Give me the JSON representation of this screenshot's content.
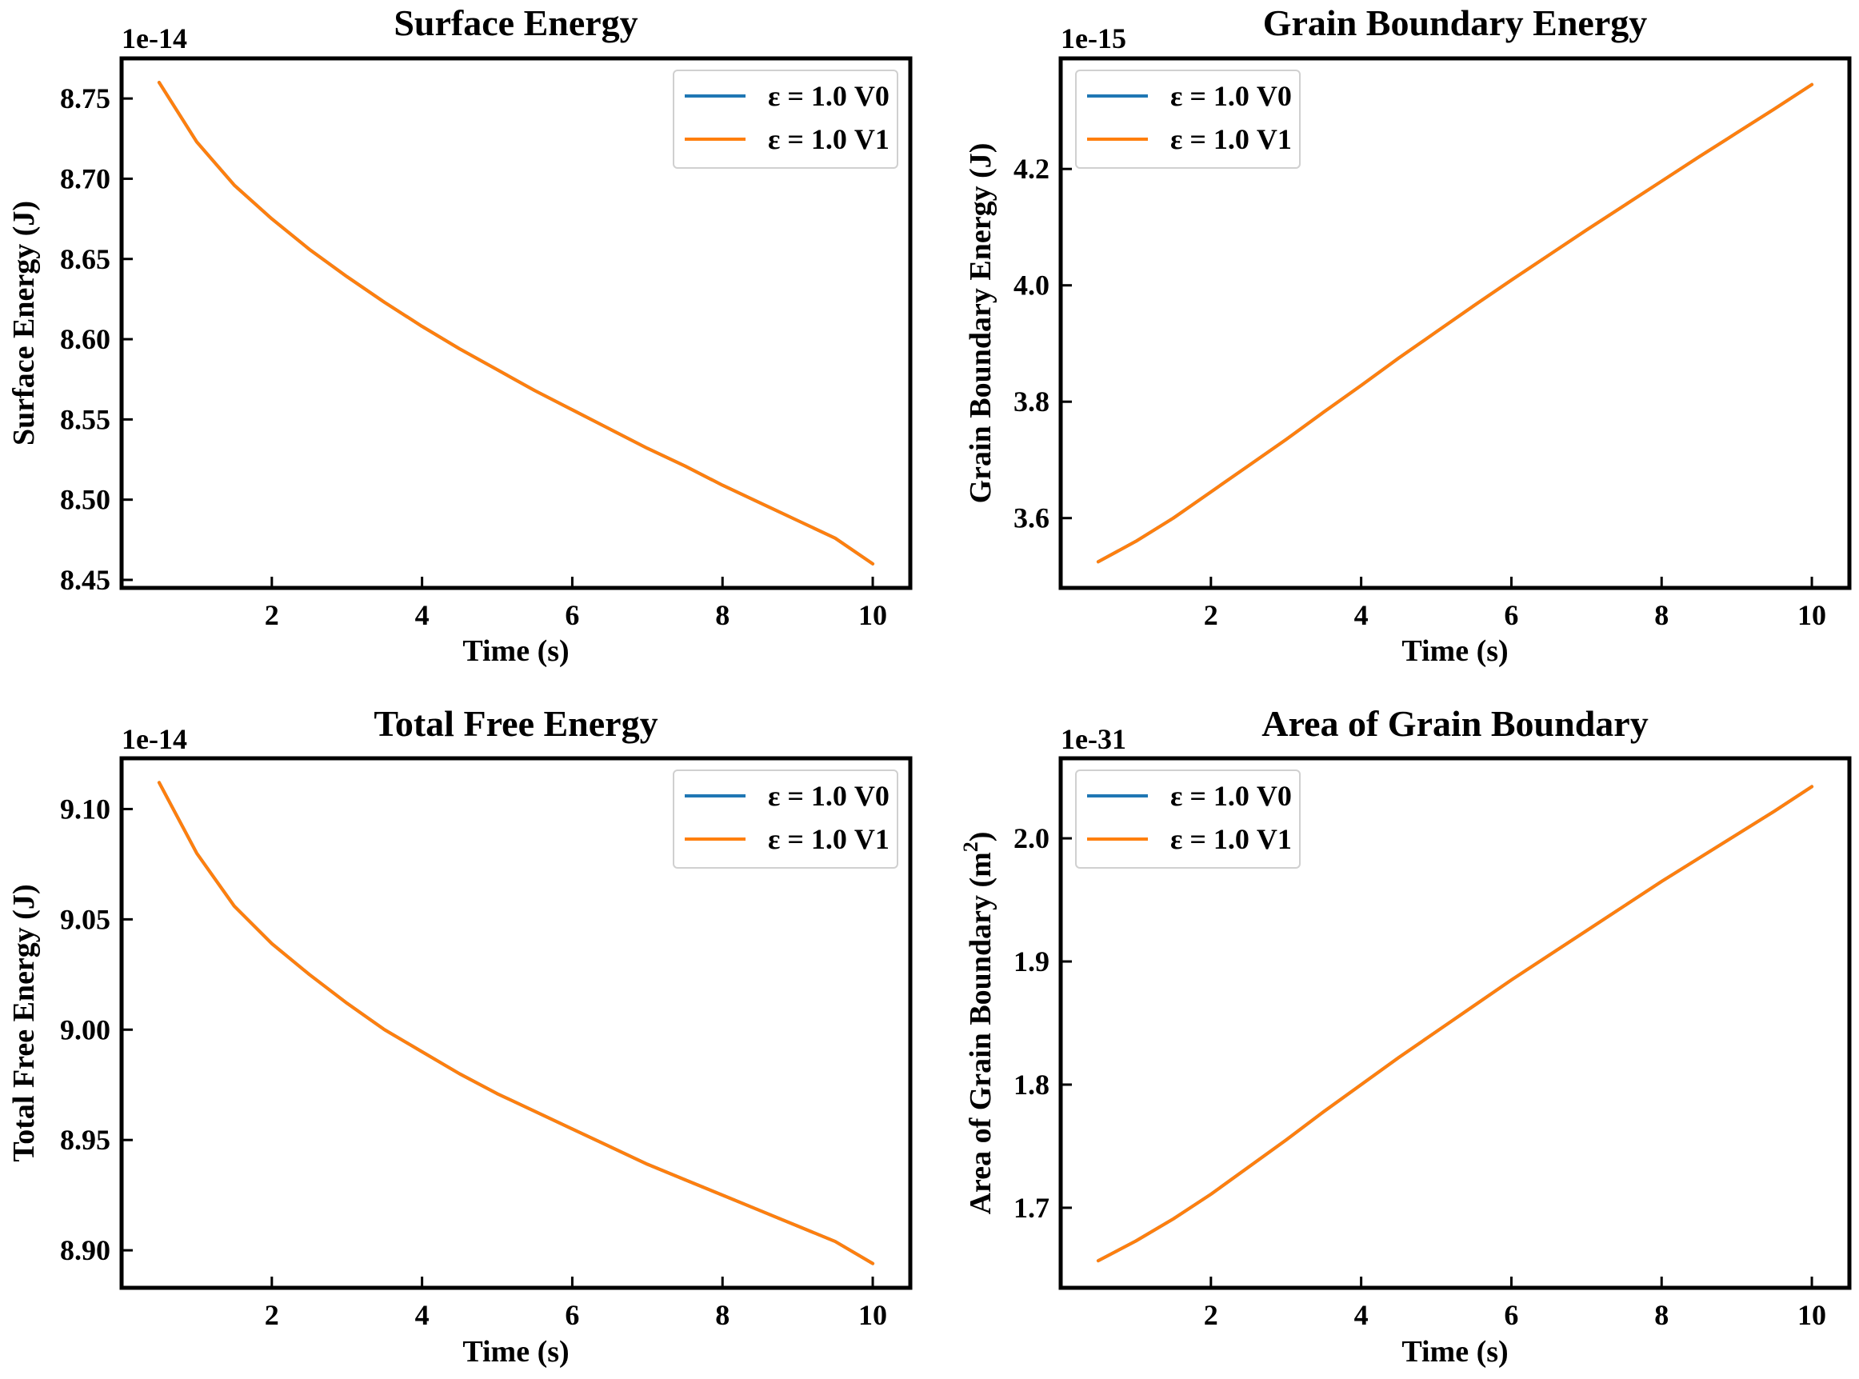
{
  "chart_data": [
    {
      "type": "line",
      "title": "Surface Energy",
      "xlabel": "Time (s)",
      "ylabel": "Surface Energy (J)",
      "offset_text": "1e-14",
      "xlim": [
        0.0,
        10.5
      ],
      "ylim": [
        8.445,
        8.775
      ],
      "xticks": [
        2,
        4,
        6,
        8,
        10
      ],
      "xtick_labels": [
        "2",
        "4",
        "6",
        "8",
        "10"
      ],
      "yticks": [
        8.45,
        8.5,
        8.55,
        8.6,
        8.65,
        8.7,
        8.75
      ],
      "ytick_labels": [
        "8.45",
        "8.50",
        "8.55",
        "8.60",
        "8.65",
        "8.70",
        "8.75"
      ],
      "grid": false,
      "legend_position": "top-right",
      "x": [
        0.5,
        1.0,
        1.5,
        2.0,
        2.5,
        3.0,
        3.5,
        4.0,
        4.5,
        5.0,
        5.5,
        6.0,
        6.5,
        7.0,
        7.5,
        8.0,
        8.5,
        9.0,
        9.5,
        10.0
      ],
      "series": [
        {
          "name": "ε = 1.0 V0",
          "color": "#1f77b4",
          "values": [
            8.76,
            8.723,
            8.696,
            8.675,
            8.656,
            8.639,
            8.623,
            8.608,
            8.594,
            8.581,
            8.568,
            8.556,
            8.544,
            8.532,
            8.521,
            8.509,
            8.498,
            8.487,
            8.476,
            8.46
          ]
        },
        {
          "name": "ε = 1.0 V1",
          "color": "#ff7f0e",
          "values": [
            8.76,
            8.723,
            8.696,
            8.675,
            8.656,
            8.639,
            8.623,
            8.608,
            8.594,
            8.581,
            8.568,
            8.556,
            8.544,
            8.532,
            8.521,
            8.509,
            8.498,
            8.487,
            8.476,
            8.46
          ]
        }
      ]
    },
    {
      "type": "line",
      "title": "Grain Boundary Energy",
      "xlabel": "Time (s)",
      "ylabel": "Grain Boundary Energy (J)",
      "offset_text": "1e-15",
      "xlim": [
        0.0,
        10.5
      ],
      "ylim": [
        3.48,
        4.39
      ],
      "xticks": [
        2,
        4,
        6,
        8,
        10
      ],
      "xtick_labels": [
        "2",
        "4",
        "6",
        "8",
        "10"
      ],
      "yticks": [
        3.6,
        3.8,
        4.0,
        4.2
      ],
      "ytick_labels": [
        "3.6",
        "3.8",
        "4.0",
        "4.2"
      ],
      "grid": false,
      "legend_position": "top-left",
      "x": [
        0.5,
        1.0,
        1.5,
        2.0,
        2.5,
        3.0,
        3.5,
        4.0,
        4.5,
        5.0,
        5.5,
        6.0,
        6.5,
        7.0,
        7.5,
        8.0,
        8.5,
        9.0,
        9.5,
        10.0
      ],
      "series": [
        {
          "name": "ε = 1.0 V0",
          "color": "#1f77b4",
          "values": [
            3.525,
            3.56,
            3.6,
            3.645,
            3.69,
            3.735,
            3.782,
            3.828,
            3.875,
            3.92,
            3.965,
            4.009,
            4.052,
            4.095,
            4.137,
            4.179,
            4.221,
            4.262,
            4.303,
            4.345
          ]
        },
        {
          "name": "ε = 1.0 V1",
          "color": "#ff7f0e",
          "values": [
            3.525,
            3.56,
            3.6,
            3.645,
            3.69,
            3.735,
            3.782,
            3.828,
            3.875,
            3.92,
            3.965,
            4.009,
            4.052,
            4.095,
            4.137,
            4.179,
            4.221,
            4.262,
            4.303,
            4.345
          ]
        }
      ]
    },
    {
      "type": "line",
      "title": "Total Free Energy",
      "xlabel": "Time (s)",
      "ylabel": "Total Free Energy (J)",
      "offset_text": "1e-14",
      "xlim": [
        0.0,
        10.5
      ],
      "ylim": [
        8.883,
        9.123
      ],
      "xticks": [
        2,
        4,
        6,
        8,
        10
      ],
      "xtick_labels": [
        "2",
        "4",
        "6",
        "8",
        "10"
      ],
      "yticks": [
        8.9,
        8.95,
        9.0,
        9.05,
        9.1
      ],
      "ytick_labels": [
        "8.90",
        "8.95",
        "9.00",
        "9.05",
        "9.10"
      ],
      "grid": false,
      "legend_position": "top-right",
      "x": [
        0.5,
        1.0,
        1.5,
        2.0,
        2.5,
        3.0,
        3.5,
        4.0,
        4.5,
        5.0,
        5.5,
        6.0,
        6.5,
        7.0,
        7.5,
        8.0,
        8.5,
        9.0,
        9.5,
        10.0
      ],
      "series": [
        {
          "name": "ε = 1.0 V0",
          "color": "#1f77b4",
          "values": [
            9.112,
            9.08,
            9.056,
            9.039,
            9.025,
            9.012,
            9.0,
            8.99,
            8.98,
            8.971,
            8.963,
            8.955,
            8.947,
            8.939,
            8.932,
            8.925,
            8.918,
            8.911,
            8.904,
            8.894
          ]
        },
        {
          "name": "ε = 1.0 V1",
          "color": "#ff7f0e",
          "values": [
            9.112,
            9.08,
            9.056,
            9.039,
            9.025,
            9.012,
            9.0,
            8.99,
            8.98,
            8.971,
            8.963,
            8.955,
            8.947,
            8.939,
            8.932,
            8.925,
            8.918,
            8.911,
            8.904,
            8.894
          ]
        }
      ]
    },
    {
      "type": "line",
      "title": "Area of Grain Boundary",
      "xlabel": "Time (s)",
      "ylabel": "Area of Grain Boundary (m",
      "ylabel_superscript": "2",
      "ylabel_suffix": ")",
      "offset_text": "1e-31",
      "xlim": [
        0.0,
        10.5
      ],
      "ylim": [
        1.635,
        2.065
      ],
      "xticks": [
        2,
        4,
        6,
        8,
        10
      ],
      "xtick_labels": [
        "2",
        "4",
        "6",
        "8",
        "10"
      ],
      "yticks": [
        1.7,
        1.8,
        1.9,
        2.0
      ],
      "ytick_labels": [
        "1.7",
        "1.8",
        "1.9",
        "2.0"
      ],
      "grid": false,
      "legend_position": "top-left",
      "x": [
        0.5,
        1.0,
        1.5,
        2.0,
        2.5,
        3.0,
        3.5,
        4.0,
        4.5,
        5.0,
        5.5,
        6.0,
        6.5,
        7.0,
        7.5,
        8.0,
        8.5,
        9.0,
        9.5,
        10.0
      ],
      "series": [
        {
          "name": "ε = 1.0 V0",
          "color": "#1f77b4",
          "values": [
            1.657,
            1.673,
            1.691,
            1.711,
            1.733,
            1.755,
            1.778,
            1.8,
            1.822,
            1.843,
            1.864,
            1.885,
            1.905,
            1.925,
            1.945,
            1.965,
            1.984,
            2.003,
            2.022,
            2.042
          ]
        },
        {
          "name": "ε = 1.0 V1",
          "color": "#ff7f0e",
          "values": [
            1.657,
            1.673,
            1.691,
            1.711,
            1.733,
            1.755,
            1.778,
            1.8,
            1.822,
            1.843,
            1.864,
            1.885,
            1.905,
            1.925,
            1.945,
            1.965,
            1.984,
            2.003,
            2.022,
            2.042
          ]
        }
      ]
    }
  ]
}
